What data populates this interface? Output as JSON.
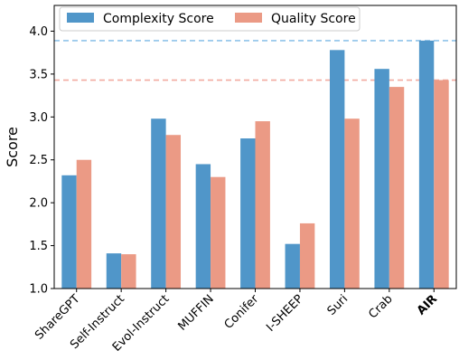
{
  "chart_data": {
    "type": "bar",
    "title": "",
    "xlabel": "",
    "ylabel": "Score",
    "ylim": [
      1.0,
      4.3
    ],
    "yticks": [
      "1.0",
      "1.5",
      "2.0",
      "2.5",
      "3.0",
      "3.5",
      "4.0"
    ],
    "categories": [
      "ShareGPT",
      "Self-Instruct",
      "Evol-Instruct",
      "MUFFIN",
      "Conifer",
      "I-SHEEP",
      "Suri",
      "Crab",
      "AIR"
    ],
    "bold_category": "AIR",
    "series": [
      {
        "name": "Complexity Score",
        "color": "#5096c9",
        "values": [
          2.32,
          1.41,
          2.98,
          2.45,
          2.75,
          1.52,
          3.78,
          3.56,
          3.89
        ]
      },
      {
        "name": "Quality Score",
        "color": "#eb9a85",
        "values": [
          2.5,
          1.4,
          2.79,
          2.3,
          2.95,
          1.76,
          2.98,
          3.35,
          3.43
        ]
      }
    ],
    "reference_lines": [
      {
        "series": "Complexity Score",
        "value": 3.89,
        "color": "#8fc3ea",
        "style": "dashed"
      },
      {
        "series": "Quality Score",
        "value": 3.43,
        "color": "#f2aaa0",
        "style": "dashed"
      }
    ],
    "grid": false,
    "legend_position": "top-left"
  }
}
